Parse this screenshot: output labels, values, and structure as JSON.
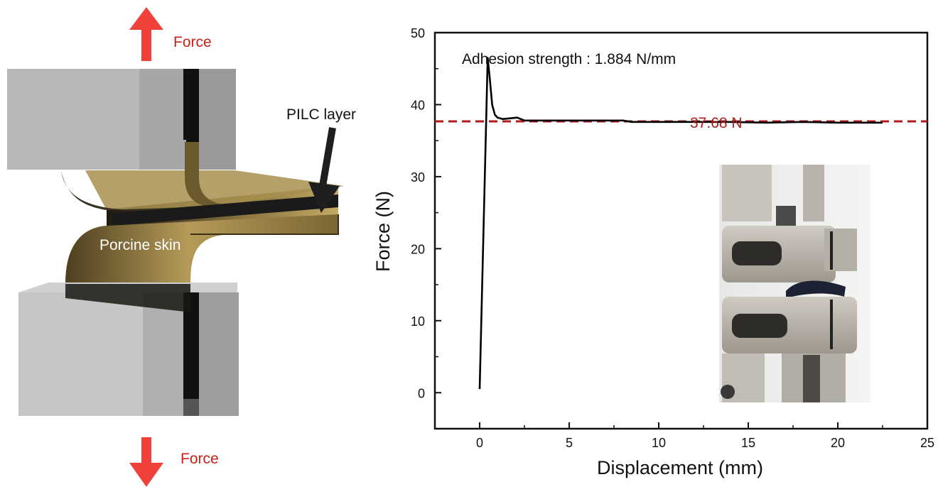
{
  "diagram": {
    "force_top_label": "Force",
    "force_bottom_label": "Force",
    "pilc_label": "PILC layer",
    "skin_label": "Porcine skin",
    "arrow_color": "#f0403a",
    "skin_color": "#a58a4e",
    "clamp_color": "#b8b8b8"
  },
  "chart_data": {
    "type": "line",
    "xlabel": "Displacement (mm)",
    "ylabel": "Force (N)",
    "xlim": [
      -2.5,
      25
    ],
    "ylim": [
      -5,
      50
    ],
    "xticks": [
      0,
      5,
      10,
      15,
      20,
      25
    ],
    "yticks": [
      0,
      10,
      20,
      30,
      40,
      50
    ],
    "annotation": "Adhesion strength : 1.884 N/mm",
    "reference_line": {
      "value": 37.68,
      "label": "37.68 N",
      "color": "#b01c1c",
      "style": "dashed"
    },
    "series": [
      {
        "color": "#000000",
        "x": [
          0,
          0.45,
          0.55,
          0.7,
          0.85,
          1.0,
          1.3,
          1.7,
          2.1,
          2.5,
          4,
          6,
          8,
          8.5,
          10,
          12,
          14,
          16,
          18,
          20,
          22.5
        ],
        "y": [
          0.5,
          46.5,
          44,
          40,
          38.6,
          38.2,
          38.0,
          38.1,
          38.2,
          37.8,
          37.8,
          37.8,
          37.8,
          37.6,
          37.6,
          37.6,
          37.6,
          37.5,
          37.6,
          37.5,
          37.5
        ]
      }
    ],
    "inset": "photo of tensile tester clamps holding a bonded specimen"
  }
}
